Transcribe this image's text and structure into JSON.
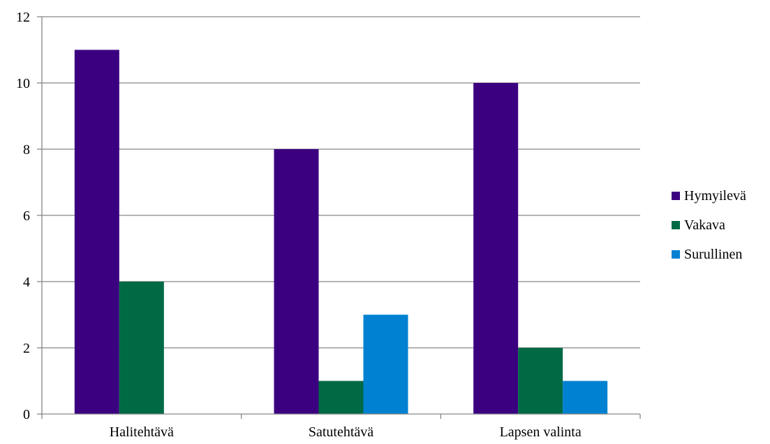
{
  "chart_data": {
    "type": "bar",
    "categories": [
      "Halitehtävä",
      "Satutehtävä",
      "Lapsen valinta"
    ],
    "series": [
      {
        "name": "Hymyilevä",
        "values": [
          11,
          8,
          10
        ],
        "color": "#3b0080"
      },
      {
        "name": "Vakava",
        "values": [
          4,
          1,
          2
        ],
        "color": "#006a45"
      },
      {
        "name": "Surullinen",
        "values": [
          0,
          3,
          1
        ],
        "color": "#0081d1"
      }
    ],
    "title": "",
    "xlabel": "",
    "ylabel": "",
    "ylim": [
      0,
      12
    ],
    "yticks": [
      "0",
      "2",
      "4",
      "6",
      "8",
      "10",
      "12"
    ],
    "grid": true,
    "legend_position": "right"
  }
}
